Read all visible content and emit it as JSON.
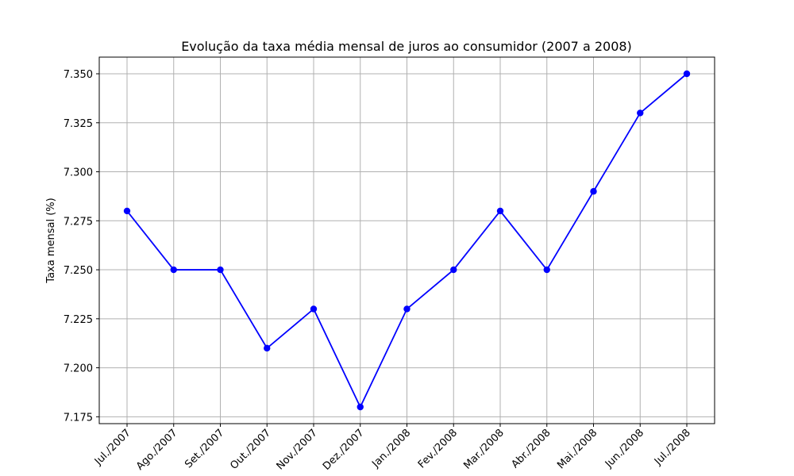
{
  "chart_data": {
    "type": "line",
    "title": "Evolução da taxa média mensal de juros ao consumidor (2007 a 2008)",
    "xlabel": "",
    "ylabel": "Taxa mensal (%)",
    "categories": [
      "Jul./2007",
      "Ago./2007",
      "Set./2007",
      "Out./2007",
      "Nov./2007",
      "Dez./2007",
      "Jan./2008",
      "Fev./2008",
      "Mar./2008",
      "Abr./2008",
      "Mai./2008",
      "Jun./2008",
      "Jul./2008"
    ],
    "series": [
      {
        "values": [
          7.28,
          7.25,
          7.25,
          7.21,
          7.23,
          7.18,
          7.23,
          7.25,
          7.28,
          7.25,
          7.29,
          7.33,
          7.35
        ],
        "color": "#0000ff",
        "marker": "circle"
      }
    ],
    "ylim": [
      7.1715,
      7.3585
    ],
    "yticks": [
      7.175,
      7.2,
      7.225,
      7.25,
      7.275,
      7.3,
      7.325,
      7.35
    ],
    "ytick_labels": [
      "7.175",
      "7.200",
      "7.225",
      "7.250",
      "7.275",
      "7.300",
      "7.325",
      "7.350"
    ],
    "grid": true,
    "legend": "none"
  }
}
